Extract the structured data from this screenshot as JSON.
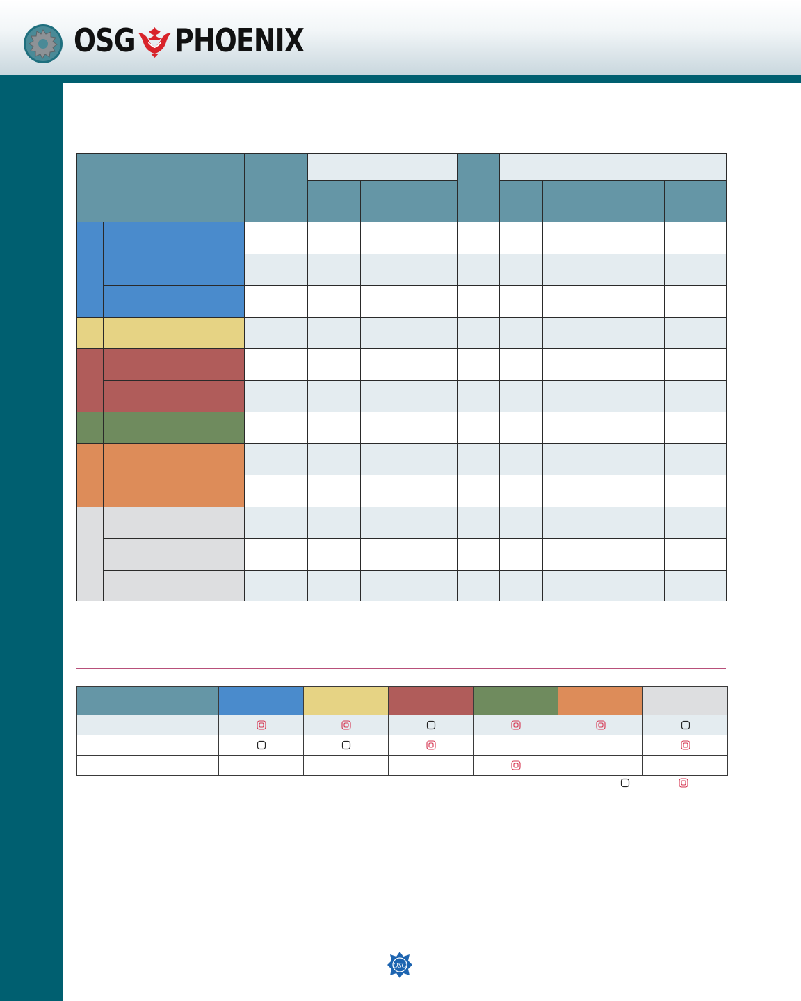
{
  "header": {
    "brand_left": "OSG",
    "brand_right": "PHOENIX",
    "gear_icon": "gear-icon",
    "phoenix_icon": "phoenix-bird-icon"
  },
  "colors": {
    "teal": "#005f70",
    "header_cell": "#6596a6",
    "light_cell": "#e4ecf0",
    "blue": "#4a8bcc",
    "yellow": "#e6d384",
    "red": "#b05c5a",
    "green": "#6f8b5e",
    "orange": "#dd8c59",
    "gray": "#dddee0",
    "rule": "#b8507a",
    "recommended_symbol": "#d6334f"
  },
  "applicability_table": {
    "rows": [
      {
        "label": "",
        "cells": [
          "",
          "",
          "",
          "",
          "",
          "",
          "",
          "",
          "",
          "",
          "",
          ""
        ]
      },
      {
        "label": "",
        "cells": [
          "",
          "",
          "",
          "",
          "",
          "",
          "",
          "",
          "",
          "",
          "",
          ""
        ]
      },
      {
        "label": "",
        "cells": [
          "",
          "",
          "",
          "",
          "",
          "",
          "",
          "",
          "",
          "",
          "",
          ""
        ]
      }
    ],
    "symbols": [
      [
        "recommended",
        "recommended",
        "suitable",
        "recommended",
        "recommended",
        "suitable"
      ],
      [
        "suitable",
        "suitable",
        "recommended",
        "",
        "",
        "recommended"
      ],
      [
        "",
        "",
        "",
        "recommended",
        "",
        ""
      ]
    ],
    "legend": [
      "suitable",
      "recommended"
    ]
  },
  "footer": {
    "logo_icon": "osg-logo-icon",
    "logo_text": "OSG"
  }
}
